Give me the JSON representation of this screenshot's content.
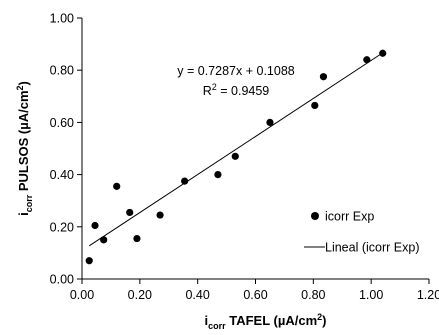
{
  "chart_data": {
    "type": "scatter",
    "xlabel": {
      "main": "i",
      "sub": "corr",
      "rest": " TAFEL (µA/cm",
      "sup": "2",
      "end": ")"
    },
    "ylabel": {
      "main": "i",
      "sub": "corr",
      "rest": " PULSOS (µA/cm",
      "sup": "2",
      "end": ")"
    },
    "xlim": [
      0.0,
      1.2
    ],
    "ylim": [
      0.0,
      1.0
    ],
    "x_ticks": [
      "0.00",
      "0.20",
      "0.40",
      "0.60",
      "0.80",
      "1.00",
      "1.20"
    ],
    "y_ticks": [
      "0.00",
      "0.20",
      "0.40",
      "0.60",
      "0.80",
      "1.00"
    ],
    "grid": false,
    "legend_position": "bottom-right",
    "series": [
      {
        "name": "icorr Exp",
        "marker": "circle",
        "color": "#000000",
        "points": [
          [
            0.025,
            0.07
          ],
          [
            0.045,
            0.205
          ],
          [
            0.075,
            0.15
          ],
          [
            0.12,
            0.355
          ],
          [
            0.165,
            0.255
          ],
          [
            0.19,
            0.155
          ],
          [
            0.27,
            0.245
          ],
          [
            0.355,
            0.375
          ],
          [
            0.47,
            0.4
          ],
          [
            0.53,
            0.47
          ],
          [
            0.65,
            0.6
          ],
          [
            0.805,
            0.665
          ],
          [
            0.835,
            0.775
          ],
          [
            0.985,
            0.84
          ],
          [
            1.04,
            0.865
          ]
        ]
      }
    ],
    "trendline": {
      "name": "Lineal (icorr Exp)",
      "slope": 0.7287,
      "intercept": 0.1088,
      "x_range": [
        0.025,
        1.04
      ],
      "color": "#000000"
    },
    "annotation": {
      "equation": "y = 0.7287x + 0.1088",
      "r2_main": "R",
      "r2_sup": "2",
      "r2_rest": " = 0.9459"
    }
  }
}
